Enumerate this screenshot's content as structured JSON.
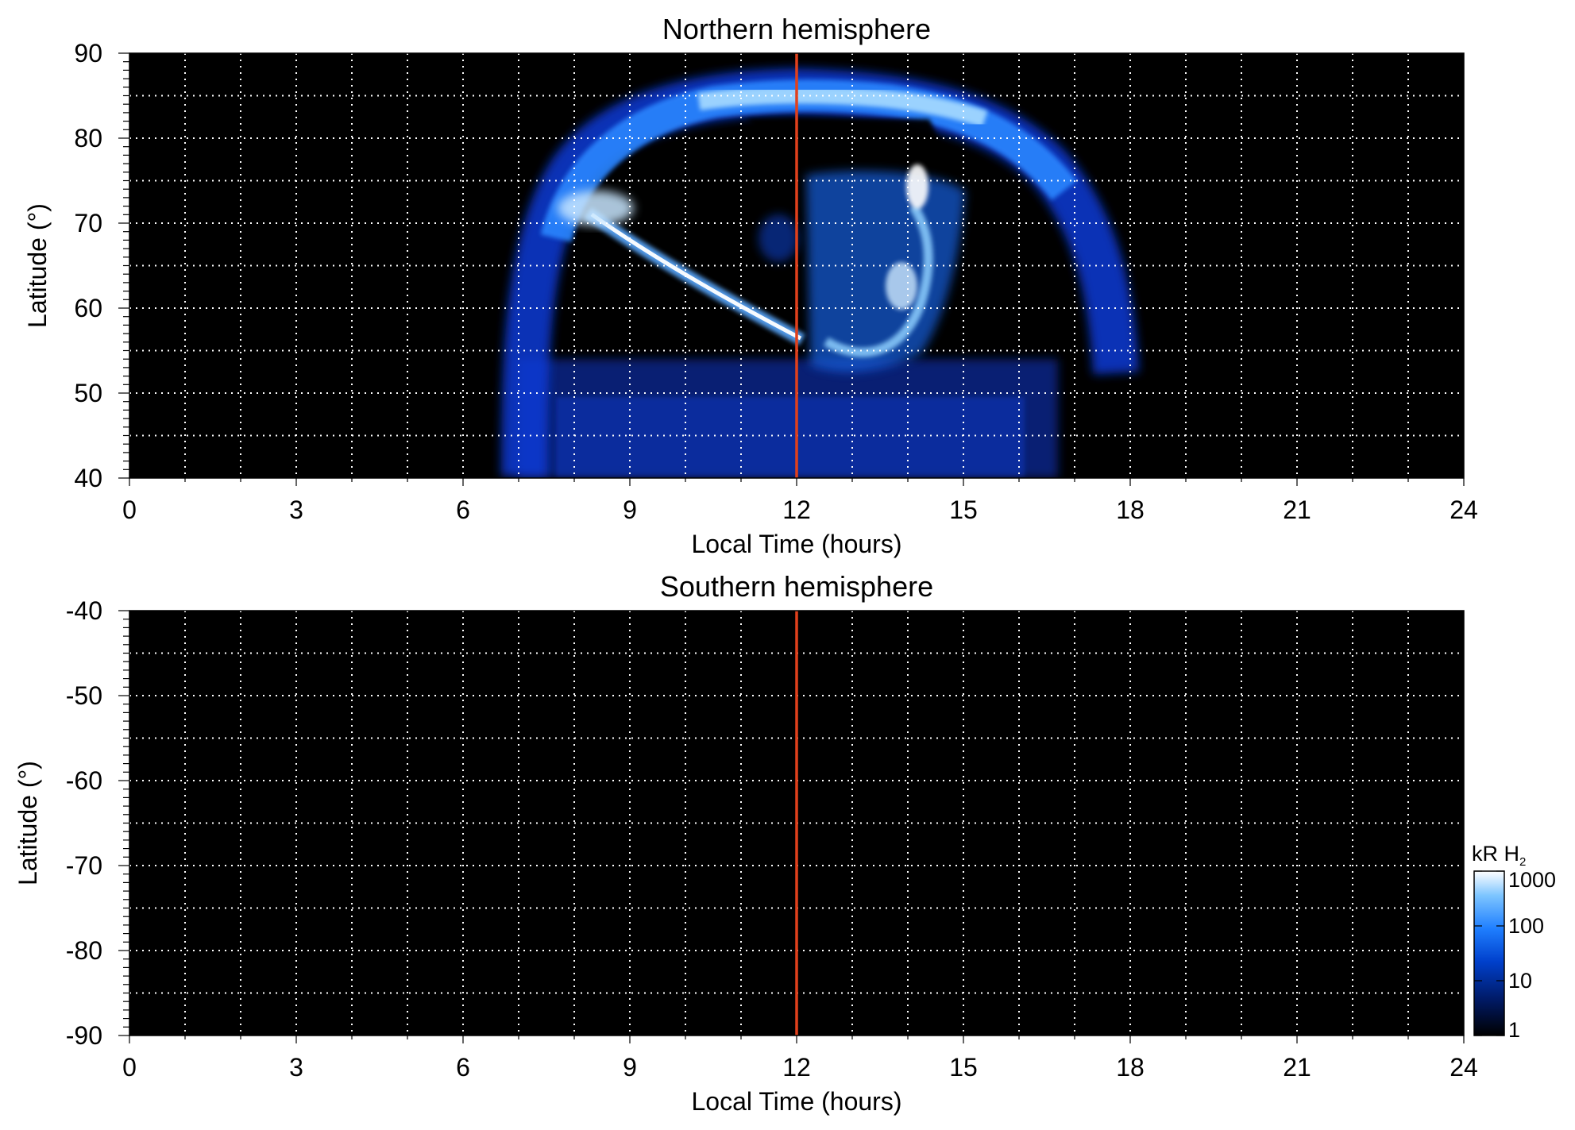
{
  "colors": {
    "plot_background": "#000000",
    "grid": "#ffffff",
    "noon_line": "#e0401c",
    "colormap": [
      "#000000",
      "#001a66",
      "#0040cc",
      "#1f7fff",
      "#7cc4ff",
      "#ffffff"
    ]
  },
  "colorbar": {
    "label": "kR H",
    "subscript": "2",
    "ticks": [
      "1000",
      "100",
      "10",
      "1"
    ],
    "tick_values": [
      1000,
      100,
      10,
      1
    ],
    "scale": "log"
  },
  "chart_data": [
    {
      "type": "heatmap",
      "title": "Northern hemisphere",
      "xlabel": "Local Time (hours)",
      "ylabel": "Latitude (°)",
      "xlim": [
        0,
        24
      ],
      "ylim": [
        40,
        90
      ],
      "xticks": [
        0,
        3,
        6,
        9,
        12,
        15,
        18,
        21,
        24
      ],
      "xtick_labels": [
        "0",
        "3",
        "6",
        "9",
        "12",
        "15",
        "18",
        "21",
        "24"
      ],
      "yticks": [
        40,
        50,
        60,
        70,
        80,
        90
      ],
      "ytick_labels": [
        "40",
        "50",
        "60",
        "70",
        "80",
        "90"
      ],
      "grid": true,
      "noon_marker_x": 12,
      "features": [
        {
          "kind": "auroral_oval_arc",
          "lt_start": 7.2,
          "lt_end": 17.8,
          "lat_peak": 84.5,
          "lat_ends": 55,
          "brightness_kR": 400
        },
        {
          "kind": "bright_streak",
          "lt_start": 8.3,
          "lat_start": 72,
          "lt_end": 12.3,
          "lat_end": 56,
          "brightness_kR": 1000
        },
        {
          "kind": "dayside_spot",
          "lt": 14.3,
          "lat": 73,
          "brightness_kR": 1000
        },
        {
          "kind": "dayside_spot",
          "lt": 14.0,
          "lat": 62,
          "brightness_kR": 700
        },
        {
          "kind": "diffuse_emission",
          "lt_start": 7.0,
          "lt_end": 16.8,
          "lat_start": 40,
          "lat_end": 50,
          "brightness_kR": 20
        }
      ]
    },
    {
      "type": "heatmap",
      "title": "Southern hemisphere",
      "xlabel": "Local Time (hours)",
      "ylabel": "Latitude (°)",
      "xlim": [
        0,
        24
      ],
      "ylim": [
        -90,
        -40
      ],
      "xticks": [
        0,
        3,
        6,
        9,
        12,
        15,
        18,
        21,
        24
      ],
      "xtick_labels": [
        "0",
        "3",
        "6",
        "9",
        "12",
        "15",
        "18",
        "21",
        "24"
      ],
      "yticks": [
        -40,
        -50,
        -60,
        -70,
        -80,
        -90
      ],
      "ytick_labels": [
        "-40",
        "-50",
        "-60",
        "-70",
        "-80",
        "-90"
      ],
      "grid": true,
      "noon_marker_x": 12,
      "features": []
    }
  ]
}
